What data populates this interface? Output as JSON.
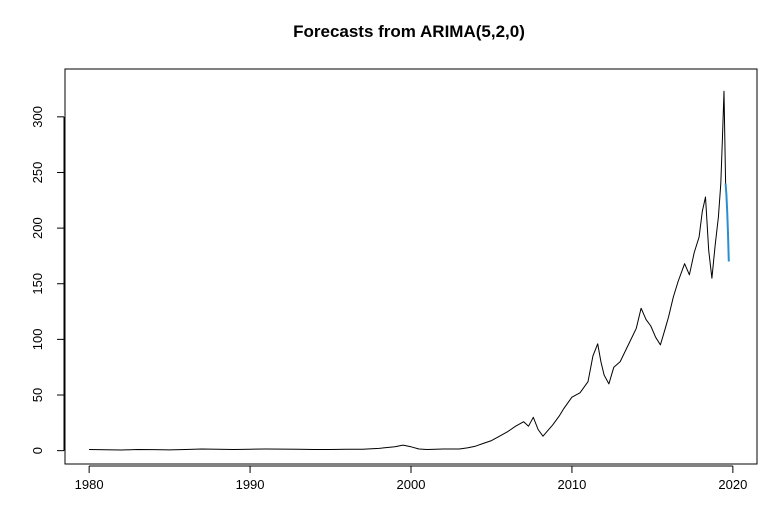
{
  "chart_data": {
    "type": "line",
    "title": "Forecasts from ARIMA(5,2,0)",
    "xlabel": "",
    "ylabel": "",
    "xlim": [
      1978.5,
      2021.5
    ],
    "ylim": [
      -12,
      343
    ],
    "x_ticks": [
      1980,
      1990,
      2000,
      2010,
      2020
    ],
    "y_ticks": [
      0,
      50,
      100,
      150,
      200,
      250,
      300
    ],
    "grid": false,
    "legend": "none",
    "series": [
      {
        "color": "#000000",
        "x": [
          1980.0,
          1981.0,
          1982.0,
          1983.0,
          1984.0,
          1985.0,
          1986.0,
          1987.0,
          1988.0,
          1989.0,
          1990.0,
          1991.0,
          1992.0,
          1993.0,
          1994.0,
          1995.0,
          1996.0,
          1997.0,
          1998.0,
          1999.0,
          1999.5,
          2000.0,
          2000.5,
          2001.0,
          2002.0,
          2003.0,
          2003.5,
          2004.0,
          2004.5,
          2005.0,
          2005.5,
          2006.0,
          2006.5,
          2007.0,
          2007.3,
          2007.6,
          2007.9,
          2008.2,
          2008.5,
          2008.8,
          2009.2,
          2009.5,
          2010.0,
          2010.5,
          2011.0,
          2011.3,
          2011.6,
          2011.8,
          2012.0,
          2012.3,
          2012.6,
          2013.0,
          2013.5,
          2014.0,
          2014.3,
          2014.6,
          2014.9,
          2015.2,
          2015.5,
          2015.8,
          2016.0,
          2016.3,
          2016.6,
          2017.0,
          2017.3,
          2017.6,
          2017.9,
          2018.1,
          2018.3,
          2018.5,
          2018.7,
          2018.9,
          2019.1,
          2019.25,
          2019.35,
          2019.45,
          2019.55
        ],
        "y": [
          1.0,
          0.8,
          0.6,
          1.0,
          0.9,
          0.7,
          1.0,
          1.5,
          1.2,
          1.0,
          1.3,
          1.5,
          1.4,
          1.2,
          1.0,
          1.0,
          1.2,
          1.3,
          2.0,
          3.5,
          5.0,
          3.5,
          1.5,
          1.0,
          1.5,
          1.5,
          2.5,
          4.0,
          6.5,
          9.0,
          13.0,
          17.0,
          22.0,
          26.0,
          22.0,
          30.0,
          19.0,
          13.0,
          18.0,
          23.0,
          31.0,
          38.0,
          48.0,
          52.0,
          62.0,
          85.0,
          96.0,
          80.0,
          68.0,
          60.0,
          75.0,
          80.0,
          95.0,
          110.0,
          128.0,
          118.0,
          112.0,
          102.0,
          95.0,
          110.0,
          120.0,
          138.0,
          152.0,
          168.0,
          158.0,
          178.0,
          192.0,
          215.0,
          228.0,
          180.0,
          155.0,
          185.0,
          210.0,
          240.0,
          280.0,
          323.0,
          240.0
        ]
      },
      {
        "color": "#2b8fcf",
        "x": [
          2019.55,
          2019.6,
          2019.65,
          2019.7,
          2019.75
        ],
        "y": [
          240.0,
          230.0,
          215.0,
          195.0,
          170.0
        ]
      }
    ]
  }
}
